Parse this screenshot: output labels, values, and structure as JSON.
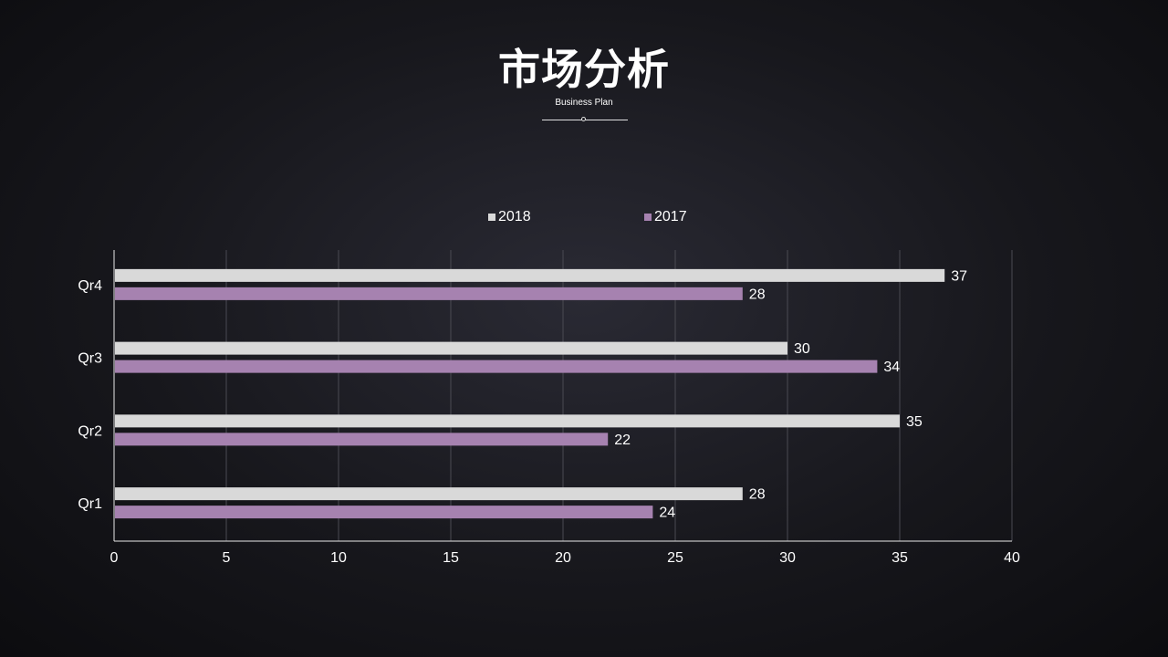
{
  "header": {
    "title": "市场分析",
    "subtitle": "Business Plan"
  },
  "chart_data": {
    "type": "bar",
    "orientation": "horizontal",
    "categories": [
      "Qr1",
      "Qr2",
      "Qr3",
      "Qr4"
    ],
    "series": [
      {
        "name": "2018",
        "values": [
          28,
          35,
          30,
          37
        ],
        "color": "#d9d9d9"
      },
      {
        "name": "2017",
        "values": [
          24,
          22,
          34,
          28
        ],
        "color": "#a682b0"
      }
    ],
    "xlim": [
      0,
      40
    ],
    "xticks": [
      0,
      5,
      10,
      15,
      20,
      25,
      30,
      35,
      40
    ],
    "grid": true,
    "data_labels": true,
    "legend_position": "top"
  }
}
